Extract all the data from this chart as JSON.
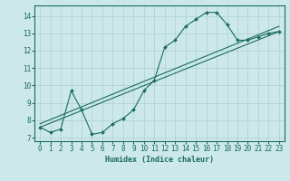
{
  "xlabel": "Humidex (Indice chaleur)",
  "bg_color": "#cce8ea",
  "line_color": "#1a6b60",
  "grid_color": "#aad0d4",
  "xlim": [
    -0.5,
    23.5
  ],
  "ylim": [
    6.8,
    14.6
  ],
  "xticks": [
    0,
    1,
    2,
    3,
    4,
    5,
    6,
    7,
    8,
    9,
    10,
    11,
    12,
    13,
    14,
    15,
    16,
    17,
    18,
    19,
    20,
    21,
    22,
    23
  ],
  "yticks": [
    7,
    8,
    9,
    10,
    11,
    12,
    13,
    14
  ],
  "line1_x": [
    0,
    1,
    2,
    3,
    4,
    5,
    6,
    7,
    8,
    9,
    10,
    11,
    12,
    13,
    14,
    15,
    16,
    17,
    18,
    19,
    20,
    21,
    22,
    23
  ],
  "line1_y": [
    7.6,
    7.3,
    7.5,
    9.7,
    8.6,
    7.2,
    7.3,
    7.8,
    8.1,
    8.6,
    9.7,
    10.3,
    12.2,
    12.6,
    13.4,
    13.8,
    14.2,
    14.2,
    13.5,
    12.6,
    12.6,
    12.8,
    13.0,
    13.1
  ],
  "line2_x": [
    0,
    23
  ],
  "line2_y": [
    7.6,
    13.1
  ],
  "line3_x": [
    0,
    23
  ],
  "line3_y": [
    7.8,
    13.4
  ],
  "tick_fontsize": 5.5,
  "xlabel_fontsize": 6.0,
  "marker_size": 2.0
}
